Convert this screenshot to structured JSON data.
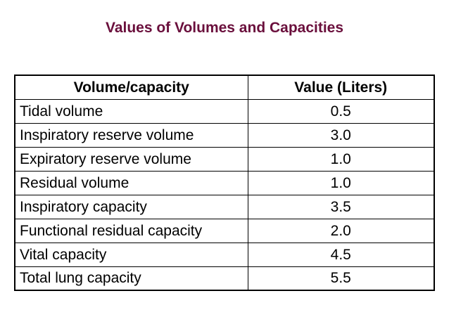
{
  "title": "Values of Volumes and Capacities",
  "table": {
    "headers": [
      "Volume/capacity",
      "Value (Liters)"
    ],
    "rows": [
      {
        "name": "Tidal volume",
        "value": "0.5"
      },
      {
        "name": "Inspiratory reserve volume",
        "value": "3.0"
      },
      {
        "name": "Expiratory reserve volume",
        "value": "1.0"
      },
      {
        "name": "Residual volume",
        "value": "1.0"
      },
      {
        "name": "Inspiratory capacity",
        "value": "3.5"
      },
      {
        "name": "Functional residual capacity",
        "value": "2.0"
      },
      {
        "name": "Vital capacity",
        "value": "4.5"
      },
      {
        "name": "Total lung capacity",
        "value": "5.5"
      }
    ]
  },
  "colors": {
    "title": "#6a0f3c",
    "text": "#000000",
    "border": "#000000",
    "background": "#ffffff"
  }
}
